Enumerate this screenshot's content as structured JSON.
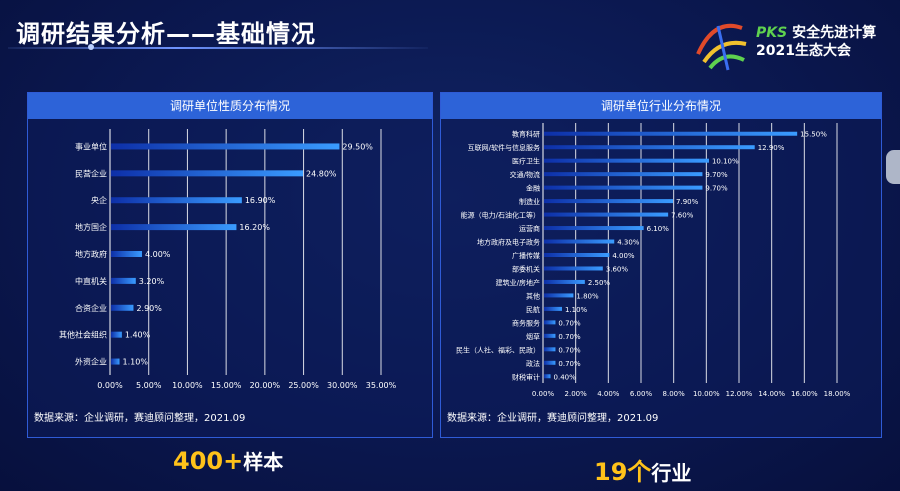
{
  "title": "调研结果分析——基础情况",
  "logo": {
    "brand": "PKS",
    "line1": "安全先进计算",
    "line2": "2021生态大会"
  },
  "panel_left": {
    "header": "调研单位性质分布情况",
    "source": "数据来源：企业调研，赛迪顾问整理，2021.09"
  },
  "panel_right": {
    "header": "调研单位行业分布情况",
    "source": "数据来源：企业调研，赛迪顾问整理，2021.09"
  },
  "stats": {
    "left": {
      "number": "400+",
      "label": "样本"
    },
    "right": {
      "number": "19个",
      "label": "行业"
    }
  },
  "colors": {
    "bar_start": "#0d2fa8",
    "bar_end": "#3a9cff",
    "accent": "#ffc21a",
    "header": "#2d63d8"
  },
  "chart_data": [
    {
      "type": "bar",
      "orientation": "horizontal",
      "title": "调研单位性质分布情况",
      "categories": [
        "事业单位",
        "民营企业",
        "央企",
        "地方国企",
        "地方政府",
        "中直机关",
        "合资企业",
        "其他社会组织",
        "外资企业"
      ],
      "values": [
        29.5,
        24.8,
        16.9,
        16.2,
        4.0,
        3.2,
        2.9,
        1.4,
        1.1
      ],
      "labels": [
        "29.50%",
        "24.80%",
        "16.90%",
        "16.20%",
        "4.00%",
        "3.20%",
        "2.90%",
        "1.40%",
        "1.10%"
      ],
      "xlim": [
        0,
        35
      ],
      "ticks": [
        "0.00%",
        "5.00%",
        "10.00%",
        "15.00%",
        "20.00%",
        "25.00%",
        "30.00%",
        "35.00%"
      ],
      "grid": true
    },
    {
      "type": "bar",
      "orientation": "horizontal",
      "title": "调研单位行业分布情况",
      "categories": [
        "教育科研",
        "互联网/软件与信息服务",
        "医疗卫生",
        "交通/物流",
        "金融",
        "制造业",
        "能源（电力/石油化工等）",
        "运营商",
        "地方政府及电子政务",
        "广播传媒",
        "部委机关",
        "建筑业/房地产",
        "其他",
        "民航",
        "商务服务",
        "烟草",
        "民生（人社、福彩、民政）",
        "政法",
        "财税审计"
      ],
      "values": [
        15.5,
        12.9,
        10.1,
        9.7,
        9.7,
        7.9,
        7.6,
        6.1,
        4.3,
        4.0,
        3.6,
        2.5,
        1.8,
        1.1,
        0.7,
        0.7,
        0.7,
        0.7,
        0.4
      ],
      "labels": [
        "15.50%",
        "12.90%",
        "10.10%",
        "9.70%",
        "9.70%",
        "7.90%",
        "7.60%",
        "6.10%",
        "4.30%",
        "4.00%",
        "3.60%",
        "2.50%",
        "1.80%",
        "1.10%",
        "0.70%",
        "0.70%",
        "0.70%",
        "0.70%",
        "0.40%"
      ],
      "xlim": [
        0,
        18
      ],
      "ticks": [
        "0.00%",
        "2.00%",
        "4.00%",
        "6.00%",
        "8.00%",
        "10.00%",
        "12.00%",
        "14.00%",
        "16.00%",
        "18.00%"
      ],
      "grid": true
    }
  ]
}
